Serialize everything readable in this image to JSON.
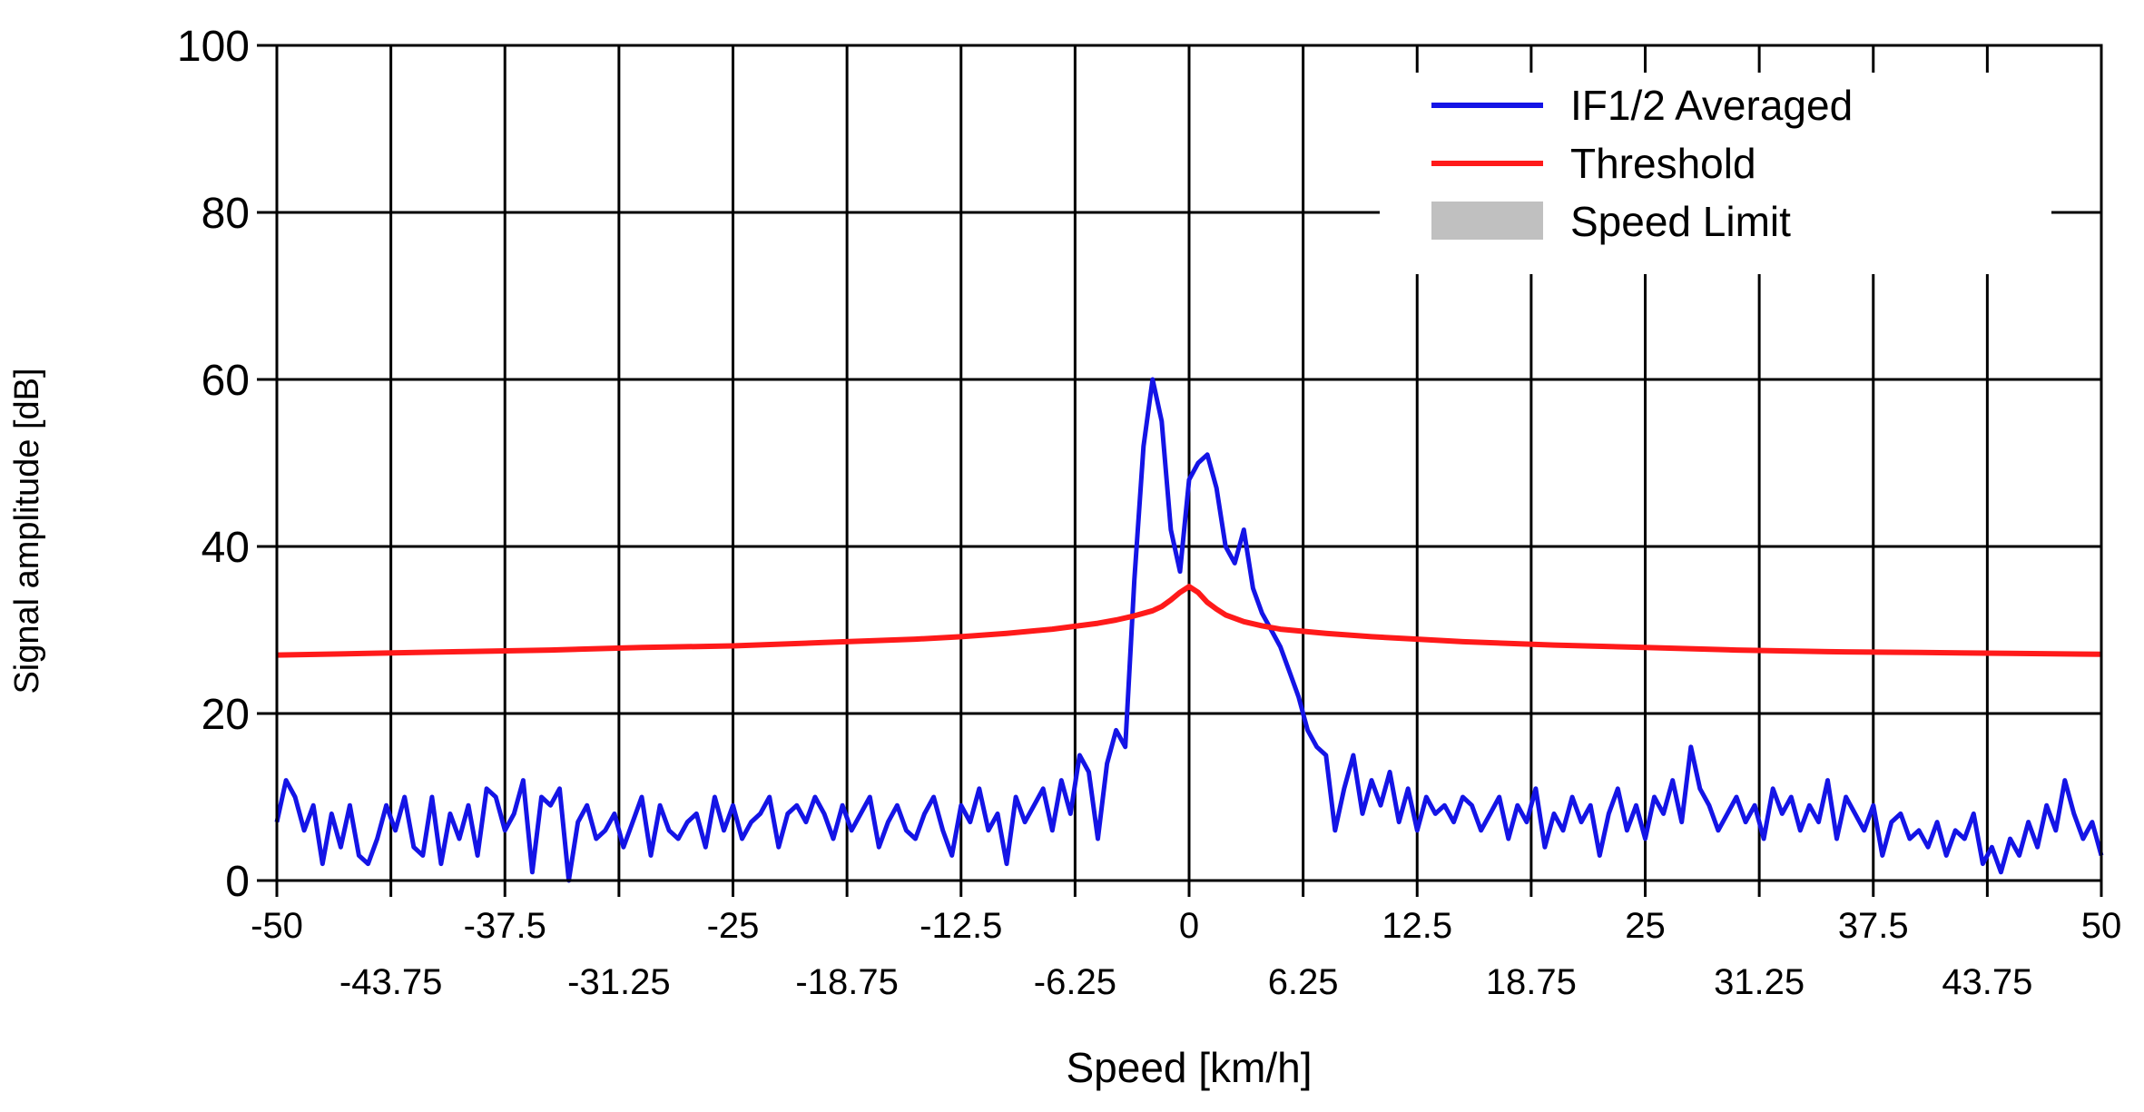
{
  "colors": {
    "background": "#ffffff",
    "grid": "#000000",
    "if_series": "#1414e6",
    "threshold": "#ff1a1a",
    "speed_limit": "#c0c0c0"
  },
  "chart_data": {
    "type": "line",
    "title": "",
    "xlabel": "Speed [km/h]",
    "ylabel": "Signal amplitude [dB]",
    "xlim": [
      -50,
      50
    ],
    "ylim": [
      0,
      100
    ],
    "grid": true,
    "legend_position": "top-right",
    "y_ticks": [
      "0",
      "20",
      "40",
      "60",
      "80",
      "100"
    ],
    "x_ticks_major": [
      "-50",
      "-37.5",
      "-25",
      "-12.5",
      "0",
      "12.5",
      "25",
      "37.5",
      "50"
    ],
    "x_ticks_minor": [
      "-43.75",
      "-31.25",
      "-18.75",
      "-6.25",
      "6.25",
      "18.75",
      "31.25",
      "43.75"
    ],
    "legend": [
      {
        "label": "IF1/2 Averaged",
        "kind": "line",
        "color": "#1414e6"
      },
      {
        "label": "Threshold",
        "kind": "line",
        "color": "#ff1a1a"
      },
      {
        "label": "Speed Limit",
        "kind": "area",
        "color": "#c0c0c0"
      }
    ],
    "series": [
      {
        "name": "IF1/2 Averaged",
        "color": "#1414e6",
        "x": [
          -50,
          -49.5,
          -49,
          -48.5,
          -48,
          -47.5,
          -47,
          -46.5,
          -46,
          -45.5,
          -45,
          -44.5,
          -44,
          -43.5,
          -43,
          -42.5,
          -42,
          -41.5,
          -41,
          -40.5,
          -40,
          -39.5,
          -39,
          -38.5,
          -38,
          -37.5,
          -37,
          -36.5,
          -36,
          -35.5,
          -35,
          -34.5,
          -34,
          -33.5,
          -33,
          -32.5,
          -32,
          -31.5,
          -31,
          -30.5,
          -30,
          -29.5,
          -29,
          -28.5,
          -28,
          -27.5,
          -27,
          -26.5,
          -26,
          -25.5,
          -25,
          -24.5,
          -24,
          -23.5,
          -23,
          -22.5,
          -22,
          -21.5,
          -21,
          -20.5,
          -20,
          -19.5,
          -19,
          -18.5,
          -18,
          -17.5,
          -17,
          -16.5,
          -16,
          -15.5,
          -15,
          -14.5,
          -14,
          -13.5,
          -13,
          -12.5,
          -12,
          -11.5,
          -11,
          -10.5,
          -10,
          -9.5,
          -9,
          -8.5,
          -8,
          -7.5,
          -7,
          -6.5,
          -6,
          -5.5,
          -5,
          -4.5,
          -4,
          -3.5,
          -3,
          -2.5,
          -2,
          -1.5,
          -1,
          -0.5,
          0,
          0.5,
          1,
          1.5,
          2,
          2.5,
          3,
          3.5,
          4,
          4.5,
          5,
          5.5,
          6,
          6.5,
          7,
          7.5,
          8,
          8.5,
          9,
          9.5,
          10,
          10.5,
          11,
          11.5,
          12,
          12.5,
          13,
          13.5,
          14,
          14.5,
          15,
          15.5,
          16,
          16.5,
          17,
          17.5,
          18,
          18.5,
          19,
          19.5,
          20,
          20.5,
          21,
          21.5,
          22,
          22.5,
          23,
          23.5,
          24,
          24.5,
          25,
          25.5,
          26,
          26.5,
          27,
          27.5,
          28,
          28.5,
          29,
          29.5,
          30,
          30.5,
          31,
          31.5,
          32,
          32.5,
          33,
          33.5,
          34,
          34.5,
          35,
          35.5,
          36,
          36.5,
          37,
          37.5,
          38,
          38.5,
          39,
          39.5,
          40,
          40.5,
          41,
          41.5,
          42,
          42.5,
          43,
          43.5,
          44,
          44.5,
          45,
          45.5,
          46,
          46.5,
          47,
          47.5,
          48,
          48.5,
          49,
          49.5,
          50
        ],
        "y": [
          7,
          12,
          10,
          6,
          9,
          2,
          8,
          4,
          9,
          3,
          2,
          5,
          9,
          6,
          10,
          4,
          3,
          10,
          2,
          8,
          5,
          9,
          3,
          11,
          10,
          6,
          8,
          12,
          1,
          10,
          9,
          11,
          0,
          7,
          9,
          5,
          6,
          8,
          4,
          7,
          10,
          3,
          9,
          6,
          5,
          7,
          8,
          4,
          10,
          6,
          9,
          5,
          7,
          8,
          10,
          4,
          8,
          9,
          7,
          10,
          8,
          5,
          9,
          6,
          8,
          10,
          4,
          7,
          9,
          6,
          5,
          8,
          10,
          6,
          3,
          9,
          7,
          11,
          6,
          8,
          2,
          10,
          7,
          9,
          11,
          6,
          12,
          8,
          15,
          13,
          5,
          14,
          18,
          16,
          36,
          52,
          60,
          55,
          42,
          37,
          48,
          50,
          51,
          47,
          40,
          38,
          42,
          35,
          32,
          30,
          28,
          25,
          22,
          18,
          16,
          15,
          6,
          11,
          15,
          8,
          12,
          9,
          13,
          7,
          11,
          6,
          10,
          8,
          9,
          7,
          10,
          9,
          6,
          8,
          10,
          5,
          9,
          7,
          11,
          4,
          8,
          6,
          10,
          7,
          9,
          3,
          8,
          11,
          6,
          9,
          5,
          10,
          8,
          12,
          7,
          16,
          11,
          9,
          6,
          8,
          10,
          7,
          9,
          5,
          11,
          8,
          10,
          6,
          9,
          7,
          12,
          5,
          10,
          8,
          6,
          9,
          3,
          7,
          8,
          5,
          6,
          4,
          7,
          3,
          6,
          5,
          8,
          2,
          4,
          1,
          5,
          3,
          7,
          4,
          9,
          6,
          12,
          8,
          5,
          7,
          3
        ],
        "source": "estimated from plot"
      },
      {
        "name": "Threshold",
        "color": "#ff1a1a",
        "x": [
          -50,
          -45,
          -40,
          -35,
          -30,
          -25,
          -20,
          -15,
          -12.5,
          -10,
          -7.5,
          -5,
          -4,
          -3,
          -2,
          -1.5,
          -1,
          -0.5,
          0,
          0.5,
          1,
          1.5,
          2,
          3,
          4,
          5,
          7.5,
          10,
          12.5,
          15,
          20,
          25,
          30,
          35,
          40,
          45,
          50
        ],
        "y": [
          27,
          27.2,
          27.4,
          27.6,
          27.9,
          28.1,
          28.5,
          28.9,
          29.2,
          29.6,
          30.1,
          30.8,
          31.2,
          31.7,
          32.3,
          32.8,
          33.6,
          34.5,
          35.2,
          34.5,
          33.3,
          32.5,
          31.8,
          31.0,
          30.5,
          30.1,
          29.6,
          29.2,
          28.9,
          28.6,
          28.2,
          27.9,
          27.6,
          27.4,
          27.3,
          27.2,
          27.1
        ]
      }
    ]
  }
}
